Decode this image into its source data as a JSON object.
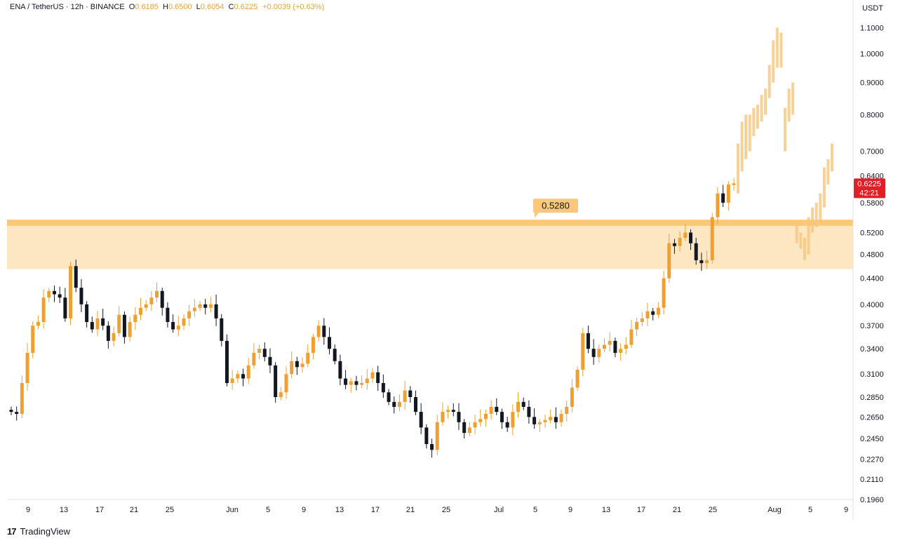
{
  "header": {
    "symbol": "ENA / TetherUS · 12h · BINANCE",
    "open_label": "O",
    "open": "0.6185",
    "high_label": "H",
    "high": "0.6500",
    "low_label": "L",
    "low": "0.6054",
    "close_label": "C",
    "close": "0.6225",
    "change": "+0.0039 (+0.63%)"
  },
  "logo": {
    "mark": "17",
    "text": "TradingView"
  },
  "colors": {
    "up": "#f0a030",
    "down": "#131722",
    "zone": "#fde7c3",
    "zone_line": "#fbc77a",
    "price_tag": "#e41e26",
    "projection": "#f6c57d"
  },
  "chart_data": {
    "type": "candlestick",
    "currency": "USDT",
    "y_scale": "log",
    "ylim": [
      0.196,
      1.15
    ],
    "y_ticks": [
      "1.1000",
      "1.0000",
      "0.9000",
      "0.8000",
      "0.7000",
      "0.6400",
      "0.5800",
      "0.5200",
      "0.4800",
      "0.4400",
      "0.4000",
      "0.3700",
      "0.3400",
      "0.3100",
      "0.2850",
      "0.2650",
      "0.2450",
      "0.2270",
      "0.2110",
      "0.1960"
    ],
    "x_ticks": [
      "9",
      "13",
      "17",
      "21",
      "25",
      "Jun",
      "5",
      "9",
      "13",
      "17",
      "21",
      "25",
      "Jul",
      "5",
      "9",
      "13",
      "17",
      "21",
      "25",
      "Aug",
      "5",
      "9"
    ],
    "current_price": {
      "value": "0.6225",
      "countdown": "42:21"
    },
    "resistance_zone": {
      "top": 0.545,
      "line": 0.533,
      "bottom": 0.455,
      "label": "0.5280"
    },
    "candles_close": [
      0.27,
      0.268,
      0.3,
      0.335,
      0.37,
      0.375,
      0.41,
      0.42,
      0.415,
      0.41,
      0.38,
      0.46,
      0.425,
      0.4,
      0.375,
      0.365,
      0.38,
      0.37,
      0.35,
      0.36,
      0.385,
      0.355,
      0.375,
      0.385,
      0.395,
      0.4,
      0.41,
      0.42,
      0.395,
      0.375,
      0.365,
      0.37,
      0.38,
      0.39,
      0.395,
      0.4,
      0.395,
      0.4,
      0.38,
      0.35,
      0.3,
      0.305,
      0.31,
      0.305,
      0.32,
      0.335,
      0.34,
      0.33,
      0.32,
      0.285,
      0.29,
      0.31,
      0.325,
      0.318,
      0.322,
      0.335,
      0.355,
      0.37,
      0.355,
      0.34,
      0.325,
      0.305,
      0.298,
      0.302,
      0.298,
      0.3,
      0.305,
      0.312,
      0.3,
      0.29,
      0.28,
      0.275,
      0.28,
      0.292,
      0.285,
      0.27,
      0.255,
      0.24,
      0.235,
      0.26,
      0.27,
      0.272,
      0.27,
      0.26,
      0.25,
      0.255,
      0.26,
      0.263,
      0.268,
      0.275,
      0.27,
      0.26,
      0.255,
      0.27,
      0.28,
      0.275,
      0.265,
      0.258,
      0.26,
      0.262,
      0.265,
      0.26,
      0.268,
      0.275,
      0.295,
      0.315,
      0.36,
      0.34,
      0.33,
      0.34,
      0.345,
      0.35,
      0.335,
      0.34,
      0.345,
      0.365,
      0.375,
      0.38,
      0.39,
      0.385,
      0.395,
      0.44,
      0.5,
      0.495,
      0.51,
      0.52,
      0.5,
      0.47,
      0.465,
      0.47,
      0.55,
      0.6,
      0.58,
      0.62,
      0.6225
    ],
    "candles_open": [
      0.272,
      0.27,
      0.268,
      0.3,
      0.335,
      0.37,
      0.375,
      0.41,
      0.42,
      0.415,
      0.41,
      0.38,
      0.46,
      0.425,
      0.4,
      0.375,
      0.365,
      0.38,
      0.37,
      0.35,
      0.36,
      0.385,
      0.355,
      0.375,
      0.385,
      0.395,
      0.4,
      0.41,
      0.42,
      0.395,
      0.375,
      0.365,
      0.37,
      0.38,
      0.39,
      0.395,
      0.4,
      0.395,
      0.4,
      0.38,
      0.35,
      0.3,
      0.305,
      0.31,
      0.305,
      0.32,
      0.335,
      0.34,
      0.33,
      0.32,
      0.285,
      0.29,
      0.31,
      0.325,
      0.318,
      0.322,
      0.335,
      0.355,
      0.37,
      0.355,
      0.34,
      0.325,
      0.305,
      0.298,
      0.302,
      0.298,
      0.3,
      0.305,
      0.312,
      0.3,
      0.29,
      0.28,
      0.275,
      0.28,
      0.292,
      0.285,
      0.27,
      0.255,
      0.24,
      0.235,
      0.26,
      0.27,
      0.272,
      0.27,
      0.26,
      0.25,
      0.255,
      0.26,
      0.263,
      0.268,
      0.275,
      0.27,
      0.26,
      0.255,
      0.27,
      0.28,
      0.275,
      0.265,
      0.258,
      0.26,
      0.262,
      0.265,
      0.26,
      0.268,
      0.275,
      0.295,
      0.315,
      0.36,
      0.34,
      0.33,
      0.34,
      0.345,
      0.35,
      0.335,
      0.34,
      0.345,
      0.365,
      0.375,
      0.38,
      0.39,
      0.385,
      0.395,
      0.44,
      0.5,
      0.495,
      0.51,
      0.52,
      0.5,
      0.47,
      0.465,
      0.47,
      0.55,
      0.6,
      0.58,
      0.6185
    ],
    "projection_bars": [
      [
        0.6,
        0.72
      ],
      [
        0.65,
        0.78
      ],
      [
        0.68,
        0.8
      ],
      [
        0.7,
        0.8
      ],
      [
        0.74,
        0.82
      ],
      [
        0.76,
        0.83
      ],
      [
        0.78,
        0.86
      ],
      [
        0.8,
        0.88
      ],
      [
        0.85,
        0.96
      ],
      [
        0.9,
        1.05
      ],
      [
        0.95,
        1.1
      ],
      [
        0.95,
        1.08
      ],
      [
        0.7,
        0.82
      ],
      [
        0.78,
        0.88
      ],
      [
        0.8,
        0.9
      ],
      [
        0.5,
        0.54
      ],
      [
        0.49,
        0.52
      ],
      [
        0.47,
        0.51
      ],
      [
        0.48,
        0.55
      ],
      [
        0.52,
        0.57
      ],
      [
        0.53,
        0.58
      ],
      [
        0.54,
        0.6
      ],
      [
        0.57,
        0.66
      ],
      [
        0.62,
        0.68
      ],
      [
        0.65,
        0.72
      ]
    ]
  }
}
